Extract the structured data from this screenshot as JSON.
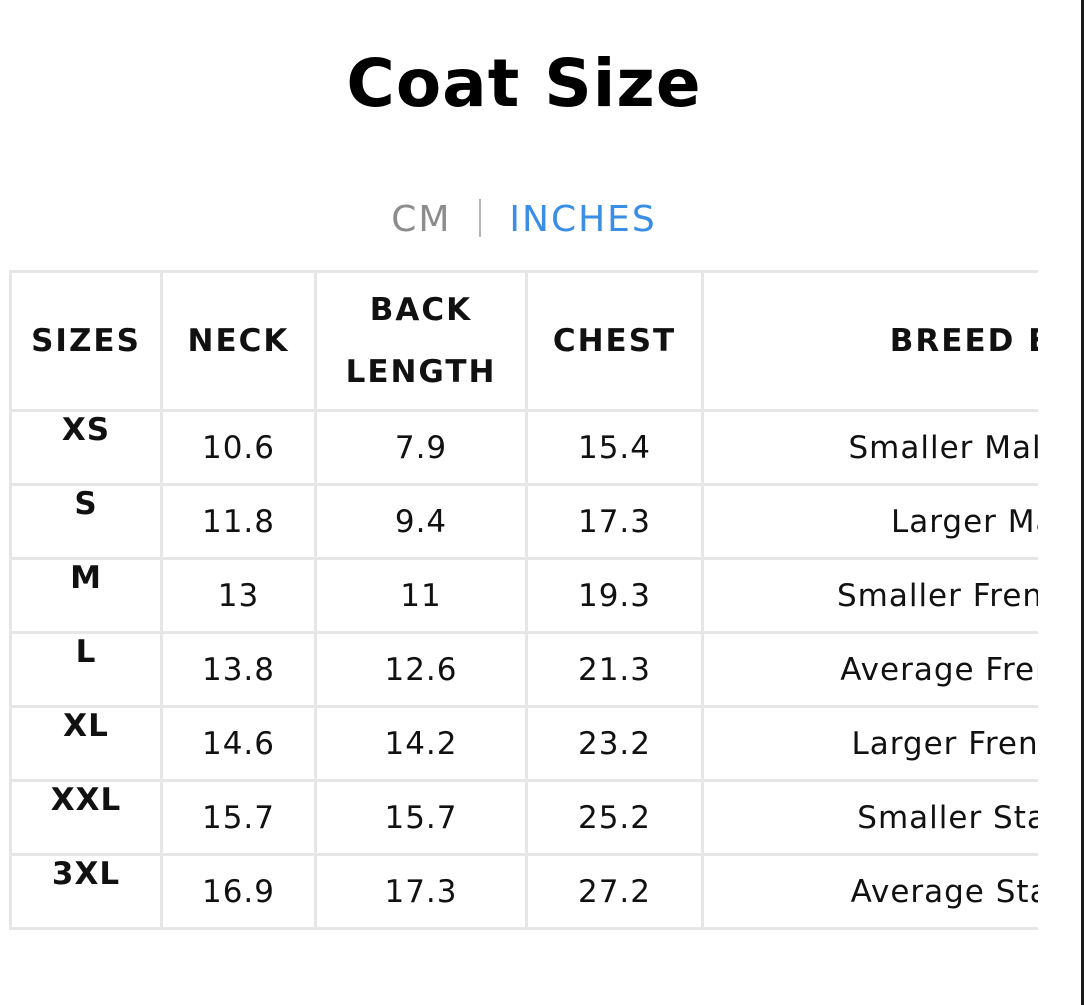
{
  "title": "Coat Size",
  "unit_toggle": {
    "options": [
      "CM",
      "INCHES"
    ],
    "selected": "INCHES",
    "colors": {
      "inactive": "#8c8c8c",
      "active": "#3a8ee6"
    }
  },
  "table": {
    "headers": {
      "sizes": "SIZES",
      "neck": "NECK",
      "back_line1": "BACK",
      "back_line2": "LENGTH",
      "chest": "CHEST",
      "breed": "BREED EXA"
    },
    "rows": [
      {
        "size": "XS",
        "neck": "10.6",
        "back": "7.9",
        "chest": "15.4",
        "breed": "Smaller Maltese/ I"
      },
      {
        "size": "S",
        "neck": "11.8",
        "back": "9.4",
        "chest": "17.3",
        "breed": "Larger Maltese/ I"
      },
      {
        "size": "M",
        "neck": "13",
        "back": "11",
        "chest": "19.3",
        "breed": "Smaller Frenchie/ B"
      },
      {
        "size": "L",
        "neck": "13.8",
        "back": "12.6",
        "chest": "21.3",
        "breed": "Average Frenchie/ B"
      },
      {
        "size": "XL",
        "neck": "14.6",
        "back": "14.2",
        "chest": "23.2",
        "breed": "Larger Frenchie/ Bo"
      },
      {
        "size": "XXL",
        "neck": "15.7",
        "back": "15.7",
        "chest": "25.2",
        "breed": "Smaller Staffy/ Eng"
      },
      {
        "size": "3XL",
        "neck": "16.9",
        "back": "17.3",
        "chest": "27.2",
        "breed": "Average Staffy/ Eng"
      }
    ]
  }
}
